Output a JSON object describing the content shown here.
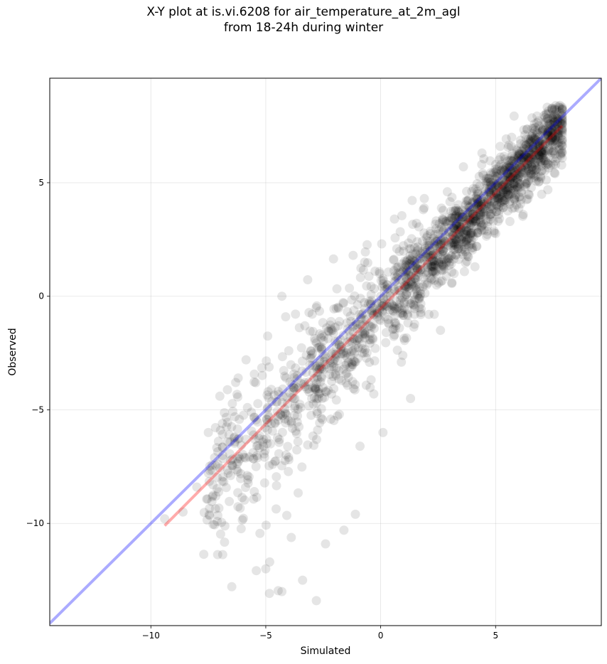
{
  "chart_data": {
    "type": "scatter",
    "title": "X-Y plot at is.vi.6208 for air_temperature_at_2m_agl",
    "subtitle": "from 18-24h during winter",
    "xlabel": "Simulated",
    "ylabel": "Observed",
    "xlim": [
      -14.4,
      9.6
    ],
    "ylim": [
      -14.5,
      9.6
    ],
    "xticks": [
      -10,
      -5,
      0,
      5
    ],
    "yticks": [
      -10,
      -5,
      0,
      5
    ],
    "xtick_labels": [
      "−10",
      "−5",
      "0",
      "5"
    ],
    "ytick_labels": [
      "−10",
      "−5",
      "0",
      "5"
    ],
    "grid": true,
    "point_color": "#000000",
    "point_alpha": 0.1,
    "reference_line": {
      "x": [
        -14.4,
        9.6
      ],
      "y": [
        -14.4,
        9.6
      ],
      "color": "#0000ff"
    },
    "regression_line": {
      "x": [
        -9.4,
        7.9
      ],
      "y": [
        -10.1,
        7.5
      ],
      "color": "#ff0000"
    },
    "points_approx": {
      "description_count": "dense cloud of ~2000 points",
      "samples": [
        [
          -9.4,
          -9.8
        ],
        [
          -8.6,
          -9.5
        ],
        [
          -8.0,
          -8.4
        ],
        [
          -7.5,
          -6.0
        ],
        [
          -7.0,
          -4.4
        ],
        [
          -6.6,
          -6.1
        ],
        [
          -6.2,
          -3.6
        ],
        [
          -5.8,
          -4.9
        ],
        [
          -5.5,
          -8.6
        ],
        [
          -5.1,
          -6.6
        ],
        [
          -5.0,
          -12.0
        ],
        [
          -4.9,
          -4.2
        ],
        [
          -4.6,
          -5.6
        ],
        [
          -4.3,
          -13.0
        ],
        [
          -4.3,
          0.0
        ],
        [
          -4.0,
          -2.4
        ],
        [
          -3.6,
          -6.4
        ],
        [
          -3.4,
          -12.5
        ],
        [
          -3.3,
          -1.3
        ],
        [
          -3.0,
          -4.5
        ],
        [
          -2.8,
          -13.4
        ],
        [
          -2.6,
          -3.2
        ],
        [
          -2.4,
          -10.9
        ],
        [
          -2.1,
          -1.5
        ],
        [
          -1.8,
          -5.2
        ],
        [
          -1.6,
          -10.3
        ],
        [
          -1.4,
          -2.9
        ],
        [
          -1.2,
          1.8
        ],
        [
          -1.1,
          -9.6
        ],
        [
          -0.9,
          -6.6
        ],
        [
          -0.7,
          1.5
        ],
        [
          -0.5,
          -1.3
        ],
        [
          -0.3,
          -4.3
        ],
        [
          0.0,
          0.0
        ],
        [
          0.1,
          -6.0
        ],
        [
          0.4,
          -0.6
        ],
        [
          0.6,
          3.4
        ],
        [
          0.9,
          -2.9
        ],
        [
          1.1,
          1.1
        ],
        [
          1.3,
          -4.5
        ],
        [
          1.6,
          2.0
        ],
        [
          1.9,
          4.3
        ],
        [
          2.1,
          -0.8
        ],
        [
          2.4,
          2.4
        ],
        [
          2.6,
          -1.5
        ],
        [
          2.9,
          4.6
        ],
        [
          3.1,
          0.6
        ],
        [
          3.4,
          3.1
        ],
        [
          3.6,
          5.7
        ],
        [
          3.9,
          2.3
        ],
        [
          4.1,
          1.3
        ],
        [
          4.4,
          4.1
        ],
        [
          4.7,
          5.2
        ],
        [
          4.9,
          3.3
        ],
        [
          5.2,
          6.6
        ],
        [
          5.4,
          4.7
        ],
        [
          5.7,
          7.0
        ],
        [
          6.0,
          5.3
        ],
        [
          6.2,
          3.6
        ],
        [
          6.5,
          6.1
        ],
        [
          6.9,
          6.8
        ],
        [
          7.2,
          7.1
        ],
        [
          7.5,
          7.6
        ],
        [
          7.8,
          8.4
        ],
        [
          7.9,
          7.4
        ]
      ]
    }
  }
}
